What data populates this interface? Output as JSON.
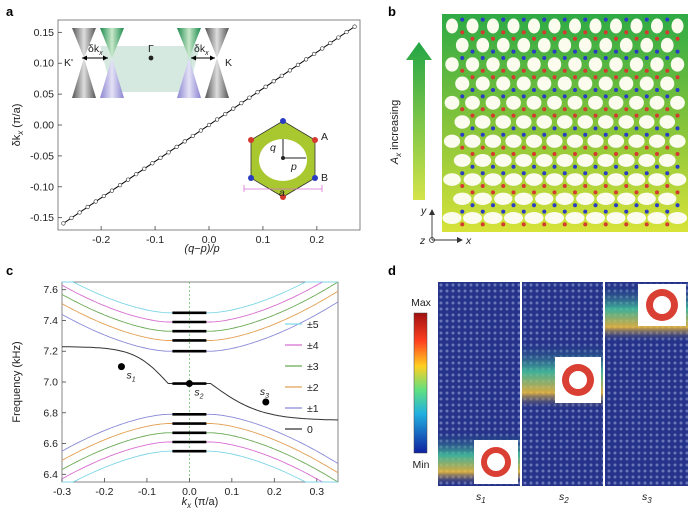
{
  "panels": {
    "a": {
      "label": "a",
      "ylabel_main": "δk",
      "ylabel_sub": "x",
      "ylabel_unit": " (π/a)",
      "xlabel": "(q−p)/p",
      "inset_labels": {
        "kprime": "K'",
        "k": "K",
        "gamma": "Γ",
        "dk_left": "δk",
        "dk_right": "δk",
        "dk_sub": "x",
        "A": "A",
        "B": "B",
        "q": "q",
        "p": "p",
        "a": "a"
      },
      "chart_data": {
        "type": "scatter",
        "xlim": [
          -0.28,
          0.28
        ],
        "ylim": [
          -0.17,
          0.17
        ],
        "xticks": [
          -0.2,
          -0.1,
          0.0,
          0.1,
          0.2
        ],
        "xtick_labels": [
          "-0.2",
          "-0.1",
          "0.0",
          "0.1",
          "0.2"
        ],
        "yticks": [
          -0.15,
          -0.1,
          -0.05,
          0.0,
          0.05,
          0.1,
          0.15
        ],
        "ytick_labels": [
          "-0.15",
          "-0.10",
          "-0.05",
          "0.00",
          "0.05",
          "0.10",
          "0.15"
        ],
        "fit_line": {
          "slope": 0.59,
          "x_range": [
            -0.27,
            0.27
          ]
        },
        "points": {
          "x_start": -0.27,
          "x_end": 0.27,
          "step": 0.015,
          "slope": 0.59
        }
      }
    },
    "b": {
      "label": "b",
      "arrow_label": "A",
      "arrow_sub": "x",
      "arrow_text": " increasing",
      "axis_x": "x",
      "axis_y": "y",
      "axis_z": "z"
    },
    "c": {
      "label": "c",
      "ylabel": "Frequency (kHz)",
      "xlabel_k": "k",
      "xlabel_sub": "x",
      "xlabel_unit": " (π/a)",
      "markers": [
        {
          "name": "s",
          "sub": "1",
          "kx": -0.16,
          "f": 7.1
        },
        {
          "name": "s",
          "sub": "2",
          "kx": 0.0,
          "f": 6.99
        },
        {
          "name": "s",
          "sub": "3",
          "kx": 0.18,
          "f": 6.87
        }
      ],
      "chart_data": {
        "type": "line",
        "xlim": [
          -0.3,
          0.35
        ],
        "ylim": [
          6.35,
          7.65
        ],
        "xticks": [
          -0.3,
          -0.2,
          -0.1,
          0.0,
          0.1,
          0.2,
          0.3
        ],
        "xtick_labels": [
          "-0.3",
          "-0.2",
          "-0.1",
          "0.0",
          "0.1",
          "0.2",
          "0.3"
        ],
        "yticks": [
          6.4,
          6.6,
          6.8,
          7.0,
          7.2,
          7.4,
          7.6
        ],
        "ytick_labels": [
          "6.4",
          "6.6",
          "6.8",
          "7.0",
          "7.2",
          "7.4",
          "7.6"
        ],
        "legend": [
          "±5",
          "±4",
          "±3",
          "±2",
          "±1",
          "0"
        ],
        "legend_colors": [
          "#7fd6e6",
          "#d86fd0",
          "#6aaa55",
          "#e2a055",
          "#8a8ad6",
          "#333333"
        ],
        "upper_bands_f0": [
          7.2,
          7.27,
          7.33,
          7.39,
          7.45
        ],
        "lower_bands_f0": [
          6.79,
          6.73,
          6.67,
          6.61,
          6.55
        ],
        "edge_state": {
          "f_left": 7.23,
          "f_mid": 6.99,
          "f_right": 6.75
        }
      }
    },
    "d": {
      "label": "d",
      "colorbar_max": "Max",
      "colorbar_min": "Min",
      "columns": [
        {
          "name": "s",
          "sub": "1"
        },
        {
          "name": "s",
          "sub": "2"
        },
        {
          "name": "s",
          "sub": "3"
        }
      ],
      "colors": {
        "bg": "#1f2f84",
        "hot": "#d62a1e",
        "warm": "#f2c038",
        "mid": "#45c59a"
      }
    }
  }
}
